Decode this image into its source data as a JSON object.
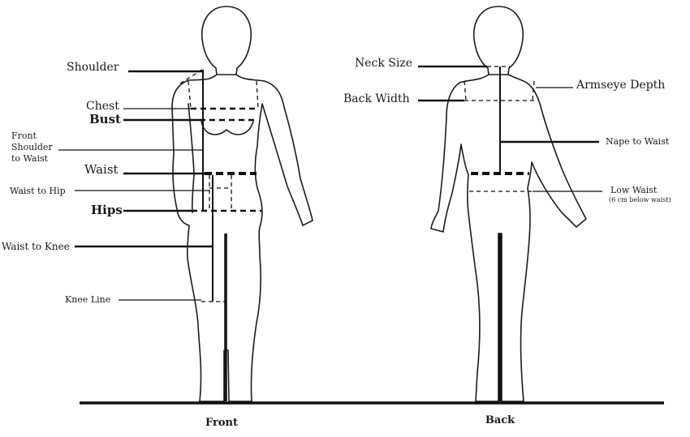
{
  "front": {
    "caption": "Front",
    "labels": {
      "shoulder": "Shoulder",
      "chest": "Chest",
      "bust": "Bust",
      "front_shoulder_1": "Front",
      "front_shoulder_2": "Shoulder",
      "front_shoulder_3": "to Waist",
      "waist": "Waist",
      "waist_to_hip": "Waist to Hip",
      "hips": "Hips",
      "waist_to_knee": "Waist to Knee",
      "knee_line": "Knee Line"
    }
  },
  "back": {
    "caption": "Back",
    "labels": {
      "neck_size": "Neck Size",
      "back_width": "Back Width",
      "armseye_depth": "Armseye Depth",
      "nape_to_waist": "Nape to Waist",
      "low_waist": "Low Waist",
      "low_waist_note": "(6 cm below waist)"
    }
  }
}
